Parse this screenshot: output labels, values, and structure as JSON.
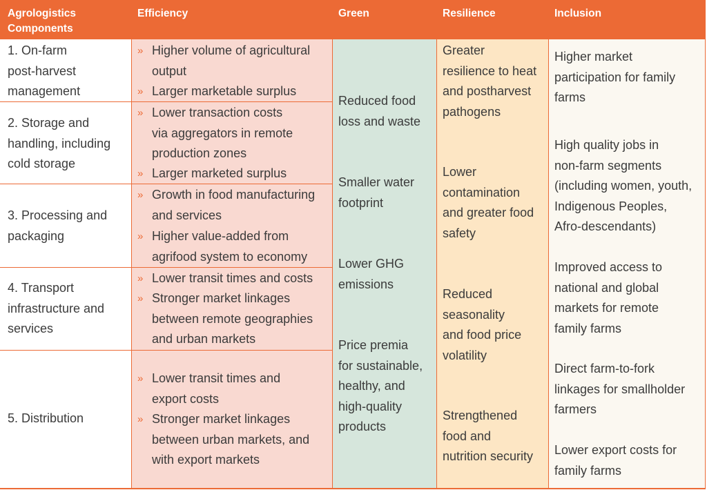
{
  "headers": {
    "components_line1": "Agrologistics",
    "components_line2": "Components",
    "efficiency": "Efficiency",
    "green": "Green",
    "resilience": "Resilience",
    "inclusion": "Inclusion"
  },
  "bullet_glyph": "»",
  "rows": [
    {
      "component": [
        "1. On-farm",
        "post-harvest",
        "management"
      ],
      "efficiency": [
        [
          "Higher volume of agricultural",
          "output"
        ],
        [
          "Larger marketable surplus"
        ]
      ]
    },
    {
      "component": [
        "2. Storage and",
        "handling, including",
        "cold storage"
      ],
      "efficiency": [
        [
          "Lower transaction costs",
          "via aggregators in remote",
          "production zones"
        ],
        [
          "Larger marketed surplus"
        ]
      ]
    },
    {
      "component": [
        "3. Processing and",
        "packaging"
      ],
      "efficiency": [
        [
          "Growth in food manufacturing",
          "and services"
        ],
        [
          "Higher value-added from",
          "agrifood system to economy"
        ]
      ]
    },
    {
      "component": [
        "4. Transport",
        "infrastructure and",
        "services"
      ],
      "efficiency": [
        [
          "Lower transit times and costs"
        ],
        [
          "Stronger market linkages",
          "between remote geographies",
          "and urban markets"
        ]
      ]
    },
    {
      "component": [
        "5. Distribution"
      ],
      "efficiency": [
        [
          "Lower transit times and",
          "export costs"
        ],
        [
          "Stronger market linkages",
          "between urban markets, and",
          "with export markets"
        ]
      ]
    }
  ],
  "green": [
    [
      "Reduced food",
      "loss and waste"
    ],
    [
      "Smaller water",
      "footprint"
    ],
    [
      "Lower GHG",
      "emissions"
    ],
    [
      "Price premia",
      "for sustainable,",
      "healthy, and",
      "high-quality",
      "products"
    ]
  ],
  "resilience": [
    [
      "Greater",
      "resilience to heat",
      "and postharvest",
      "pathogens"
    ],
    [
      "Lower",
      "contamination",
      "and greater food",
      "safety"
    ],
    [
      "Reduced",
      "seasonality",
      "and food price",
      "volatility"
    ],
    [
      "Strengthened",
      "food and",
      "nutrition security"
    ]
  ],
  "inclusion": [
    [
      "Higher market",
      "participation for family",
      "farms"
    ],
    [
      "High quality jobs in",
      "non-farm segments",
      "(including women, youth,",
      "Indigenous Peoples,",
      "Afro-descendants)"
    ],
    [
      "Improved access to",
      "national and global",
      "markets for remote",
      "family farms"
    ],
    [
      "Direct farm-to-fork",
      "linkages for smallholder",
      "farmers"
    ],
    [
      "Lower export costs for",
      "family farms"
    ]
  ]
}
